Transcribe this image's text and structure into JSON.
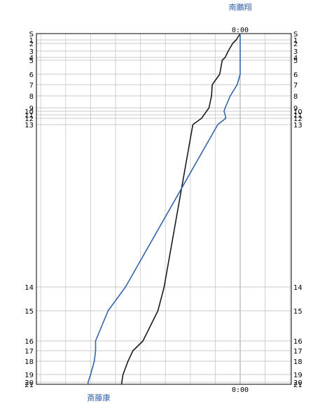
{
  "chart_data": {
    "type": "line",
    "top_runner": "南鵬翔",
    "bottom_runner": "斎藤康",
    "top_time_label": "0:00",
    "bottom_time_label": "0:00",
    "controls": [
      "S",
      "1",
      "2",
      "3",
      "4",
      "5",
      "6",
      "7",
      "8",
      "9",
      "10",
      "11",
      "12",
      "13",
      "14",
      "15",
      "16",
      "17",
      "18",
      "19",
      "20",
      "21"
    ],
    "series": [
      {
        "color": "#1a1a1a",
        "values": [
          0.0,
          -0.16,
          -0.3,
          -0.48,
          -0.6,
          -0.72,
          -0.82,
          -1.12,
          -1.15,
          -1.25,
          -1.35,
          -1.45,
          -1.55,
          -1.9,
          -3.05,
          -3.3,
          -3.9,
          -4.3,
          -4.5,
          -4.7,
          -4.75,
          -4.75
        ]
      },
      {
        "color": "#3464aa",
        "values": [
          0.0,
          0.0,
          0.0,
          0.0,
          0.0,
          0.0,
          0.0,
          -0.12,
          -0.4,
          -0.6,
          -0.65,
          -0.6,
          -0.58,
          -0.9,
          -4.6,
          -5.3,
          -5.8,
          -5.8,
          -5.85,
          -6.0,
          -6.1,
          -6.1
        ]
      }
    ]
  }
}
